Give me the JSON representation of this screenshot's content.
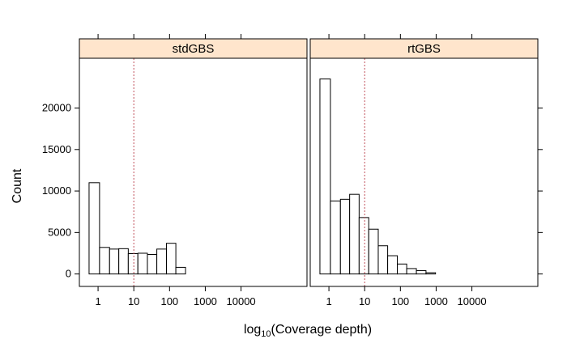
{
  "chart_data": {
    "type": "histogram",
    "x_scale": "log10",
    "xlabel_prefix": "log",
    "xlabel_sub": "10",
    "xlabel_suffix": "(Coverage depth)",
    "ylabel": "Count",
    "xlim": [
      0.3,
      700000
    ],
    "ylim": [
      -1500,
      26000
    ],
    "x_ticks": [
      1,
      10,
      100,
      1000,
      10000
    ],
    "x_tick_labels": [
      "1",
      "10",
      "100",
      "1000",
      "10000"
    ],
    "y_ticks": [
      0,
      5000,
      10000,
      15000,
      20000
    ],
    "y_tick_labels": [
      "0",
      "5000",
      "10000",
      "15000",
      "20000"
    ],
    "reference_line_x": 10,
    "strip_color": "#ffe5cc",
    "reference_line_color": "#c0505a",
    "bin_edges": [
      0.56,
      1.1,
      2.1,
      3.8,
      7.0,
      13,
      24,
      44,
      82,
      150,
      280,
      520,
      960,
      1780,
      3300,
      6100,
      11200,
      20800,
      38500,
      71000,
      131000,
      242000,
      450000
    ],
    "panels": [
      {
        "name": "stdGBS",
        "counts": [
          11000,
          3200,
          3000,
          3050,
          2450,
          2500,
          2350,
          3000,
          3700,
          800,
          0,
          0,
          0,
          0,
          0,
          0,
          0,
          0,
          0,
          0,
          0,
          0
        ]
      },
      {
        "name": "rtGBS",
        "counts": [
          23500,
          8800,
          9000,
          9600,
          6800,
          5400,
          3400,
          2200,
          1200,
          650,
          400,
          150,
          0,
          0,
          0,
          0,
          0,
          0,
          0,
          0,
          0,
          0
        ]
      }
    ]
  }
}
